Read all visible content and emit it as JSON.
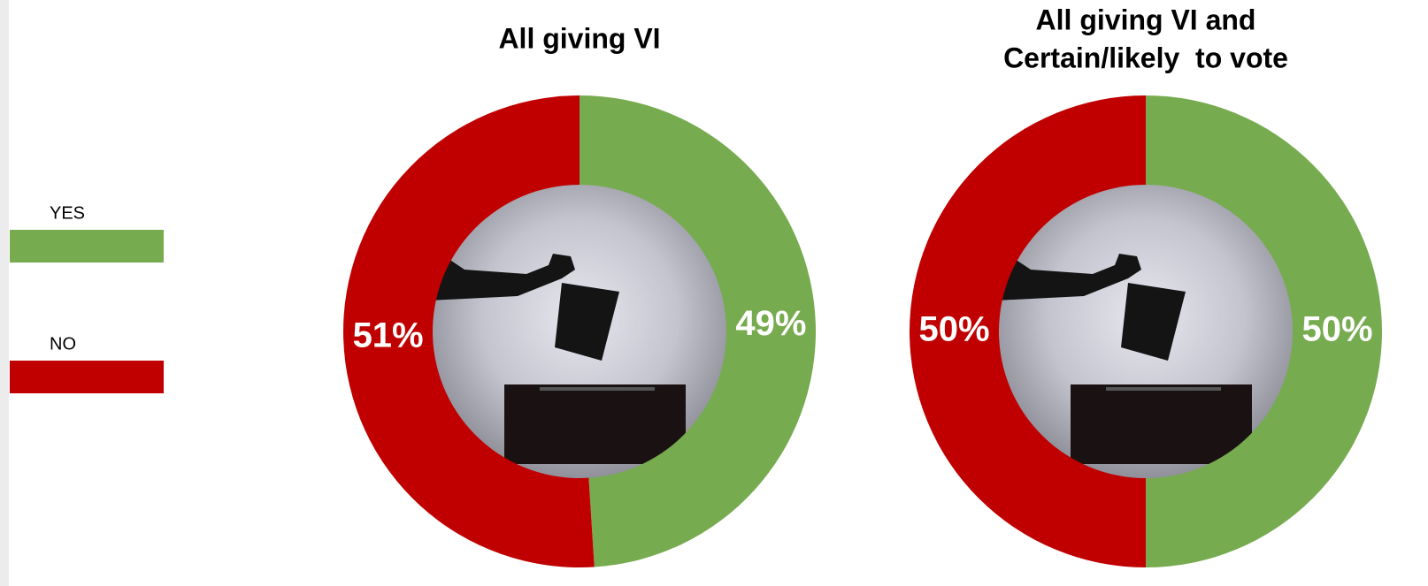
{
  "chart_data": [
    {
      "type": "donut",
      "title": [
        "All giving VI"
      ],
      "categories": [
        "YES",
        "NO"
      ],
      "values": [
        49,
        51
      ],
      "value_labels": [
        "49%",
        "51%"
      ],
      "colors": [
        "#77ab4f",
        "#c00000"
      ]
    },
    {
      "type": "donut",
      "title": [
        "All giving VI and",
        "Certain/likely  to vote"
      ],
      "categories": [
        "YES",
        "NO"
      ],
      "values": [
        50,
        50
      ],
      "value_labels": [
        "50%",
        "50%"
      ],
      "colors": [
        "#77ab4f",
        "#c00000"
      ]
    }
  ]
}
